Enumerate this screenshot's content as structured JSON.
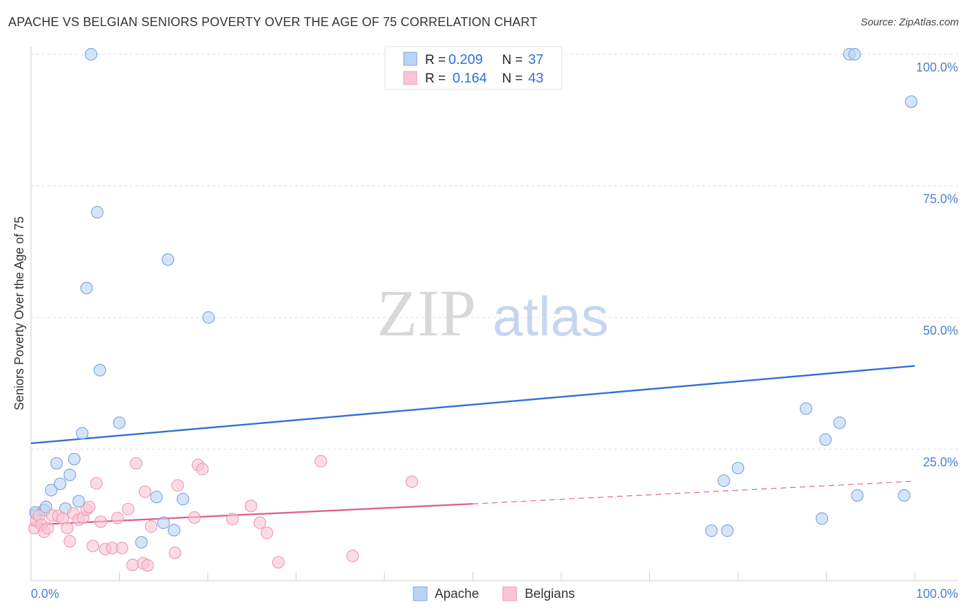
{
  "title": "APACHE VS BELGIAN SENIORS POVERTY OVER THE AGE OF 75 CORRELATION CHART",
  "source": "Source: ZipAtlas.com",
  "watermark": {
    "part1": "ZIP",
    "part2": "atlas"
  },
  "colors": {
    "apache_fill": "#b9d3f5",
    "apache_stroke": "#7ea6df",
    "apache_line": "#2f6fd6",
    "belgians_fill": "#f8c5d4",
    "belgians_stroke": "#ee9db6",
    "belgians_line": "#e0608c",
    "grid": "#dddddd",
    "tick_label": "#4a7fd0"
  },
  "legend": {
    "rows": [
      {
        "r_label": "R =",
        "r_value": "0.209",
        "n_label": "N =",
        "n_value": "37"
      },
      {
        "r_label": "R =",
        "r_value": "0.164",
        "n_label": "N =",
        "n_value": "43"
      }
    ]
  },
  "bottom_legend": {
    "apache": "Apache",
    "belgians": "Belgians"
  },
  "chart_data": {
    "type": "scatter",
    "title": "APACHE VS BELGIAN SENIORS POVERTY OVER THE AGE OF 75 CORRELATION CHART",
    "xlabel": "",
    "ylabel": "Seniors Poverty Over the Age of 75",
    "xlim": [
      0,
      100
    ],
    "ylim": [
      0,
      100
    ],
    "x_tick_labels": [
      "0.0%",
      "100.0%"
    ],
    "y_ticks": [
      25,
      50,
      75,
      100
    ],
    "y_tick_labels": [
      "25.0%",
      "50.0%",
      "75.0%",
      "100.0%"
    ],
    "grid": true,
    "legend_position": "top-center",
    "series": [
      {
        "name": "Apache",
        "points": [
          [
            0.6,
            12.6
          ],
          [
            0.5,
            13.0
          ],
          [
            1.5,
            13.4
          ],
          [
            1.7,
            14.0
          ],
          [
            2.3,
            17.2
          ],
          [
            2.9,
            22.3
          ],
          [
            3.3,
            18.4
          ],
          [
            3.9,
            13.7
          ],
          [
            4.4,
            20.1
          ],
          [
            4.9,
            23.1
          ],
          [
            5.4,
            15.1
          ],
          [
            5.8,
            28.0
          ],
          [
            6.3,
            55.6
          ],
          [
            6.8,
            100.0
          ],
          [
            7.5,
            70.0
          ],
          [
            7.8,
            40.0
          ],
          [
            10.0,
            30.0
          ],
          [
            12.5,
            7.3
          ],
          [
            14.2,
            15.9
          ],
          [
            15.0,
            11.0
          ],
          [
            15.5,
            61.0
          ],
          [
            16.2,
            9.6
          ],
          [
            17.2,
            15.5
          ],
          [
            20.1,
            50.0
          ],
          [
            77.0,
            9.5
          ],
          [
            78.8,
            9.5
          ],
          [
            78.4,
            19.0
          ],
          [
            80.0,
            21.4
          ],
          [
            87.7,
            32.7
          ],
          [
            89.5,
            11.8
          ],
          [
            89.9,
            26.8
          ],
          [
            91.5,
            30.0
          ],
          [
            92.6,
            100.0
          ],
          [
            93.2,
            100.0
          ],
          [
            93.5,
            16.2
          ],
          [
            98.8,
            16.2
          ],
          [
            99.6,
            91.0
          ]
        ]
      },
      {
        "name": "Belgians",
        "points": [
          [
            0.4,
            10.0
          ],
          [
            0.6,
            11.4
          ],
          [
            0.9,
            12.3
          ],
          [
            1.2,
            10.6
          ],
          [
            1.5,
            9.3
          ],
          [
            1.9,
            10.0
          ],
          [
            2.4,
            12.4
          ],
          [
            3.1,
            12.3
          ],
          [
            3.6,
            11.8
          ],
          [
            4.1,
            10.0
          ],
          [
            4.4,
            7.5
          ],
          [
            4.8,
            12.8
          ],
          [
            5.4,
            11.6
          ],
          [
            5.9,
            12.0
          ],
          [
            6.3,
            13.5
          ],
          [
            6.6,
            14.0
          ],
          [
            7.0,
            6.6
          ],
          [
            7.4,
            18.5
          ],
          [
            7.9,
            11.2
          ],
          [
            8.4,
            6.0
          ],
          [
            9.2,
            6.2
          ],
          [
            9.8,
            11.9
          ],
          [
            10.3,
            6.2
          ],
          [
            11.0,
            13.6
          ],
          [
            11.5,
            3.0
          ],
          [
            11.9,
            22.3
          ],
          [
            12.7,
            3.3
          ],
          [
            12.9,
            16.9
          ],
          [
            13.2,
            2.9
          ],
          [
            13.6,
            10.3
          ],
          [
            16.3,
            5.3
          ],
          [
            16.6,
            18.1
          ],
          [
            18.5,
            12.0
          ],
          [
            18.9,
            22.0
          ],
          [
            19.4,
            21.2
          ],
          [
            22.8,
            11.7
          ],
          [
            24.9,
            14.2
          ],
          [
            25.9,
            11.0
          ],
          [
            26.7,
            9.1
          ],
          [
            28.0,
            3.5
          ],
          [
            32.8,
            22.7
          ],
          [
            36.4,
            4.7
          ],
          [
            43.1,
            18.8
          ]
        ]
      }
    ],
    "trendlines": [
      {
        "series": "Apache",
        "x": [
          0,
          100
        ],
        "y": [
          26.1,
          40.8
        ],
        "style": "solid"
      },
      {
        "series": "Belgians",
        "x": [
          0,
          50
        ],
        "y": [
          10.6,
          14.6
        ],
        "style": "solid"
      },
      {
        "series": "Belgians",
        "x": [
          50,
          100
        ],
        "y": [
          14.6,
          18.9
        ],
        "style": "dashed"
      }
    ]
  }
}
